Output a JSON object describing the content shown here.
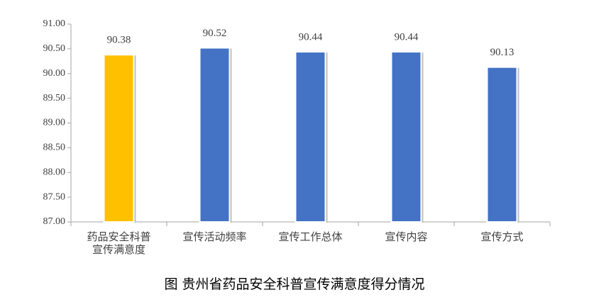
{
  "chart_data": {
    "type": "bar",
    "title": "图 贵州省药品安全科普宣传满意度得分情况",
    "categories": [
      "药品安全科普宣传满意度",
      "宣传活动频率",
      "宣传工作总体",
      "宣传内容",
      "宣传方式"
    ],
    "values": [
      90.38,
      90.52,
      90.44,
      90.44,
      90.13
    ],
    "colors": [
      "#ffc000",
      "#4472c4",
      "#4472c4",
      "#4472c4",
      "#4472c4"
    ],
    "ylim": [
      87,
      91
    ],
    "yticks": [
      {
        "value": 87,
        "label": "87.00"
      },
      {
        "value": 87.5,
        "label": "87.50"
      },
      {
        "value": 88,
        "label": "88.00"
      },
      {
        "value": 88.5,
        "label": "88.50"
      },
      {
        "value": 89,
        "label": "89.00"
      },
      {
        "value": 89.5,
        "label": "89.50"
      },
      {
        "value": 90,
        "label": "90.00"
      },
      {
        "value": 90.5,
        "label": "90.50"
      },
      {
        "value": 91,
        "label": "91.00"
      }
    ],
    "grid": false
  }
}
